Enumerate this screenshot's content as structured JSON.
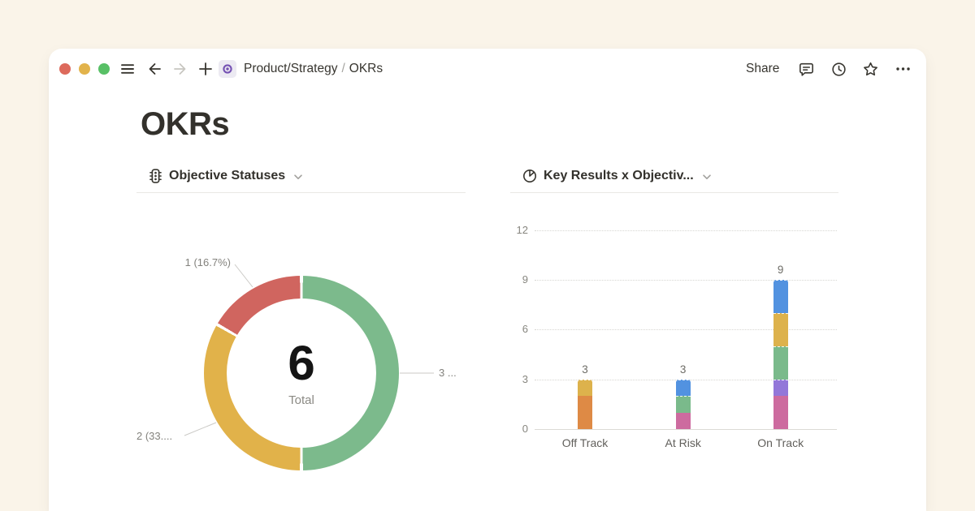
{
  "window": {
    "traffic_lights": [
      "close",
      "minimize",
      "zoom"
    ],
    "breadcrumb": {
      "parent": "Product/Strategy",
      "separator": "/",
      "current": "OKRs"
    },
    "share_label": "Share",
    "toolbar_icons": [
      "sidebar-menu-icon",
      "back-arrow-icon",
      "forward-arrow-icon",
      "plus-icon",
      "eye-page-icon",
      "comment-icon",
      "clock-icon",
      "star-icon",
      "more-icon"
    ]
  },
  "page": {
    "title": "OKRs"
  },
  "chart_data": [
    {
      "type": "pie",
      "variant": "donut",
      "title": "Objective Statuses",
      "header_icon": "traffic-light-icon",
      "total": 6,
      "total_label": "Total",
      "legend": "none",
      "slices": [
        {
          "value": 3,
          "percent": 50.0,
          "color": "#7cba8c",
          "callout": "3 ..."
        },
        {
          "value": 2,
          "percent": 33.3,
          "color": "#e1b24a",
          "callout": "2 (33...."
        },
        {
          "value": 1,
          "percent": 16.7,
          "color": "#d0655f",
          "callout": "1 (16.7%)"
        }
      ]
    },
    {
      "type": "bar",
      "variant": "stacked",
      "title": "Key Results x Objectiv...",
      "header_icon": "pie-chart-icon",
      "categories": [
        "Off Track",
        "At Risk",
        "On Track"
      ],
      "yticks": [
        0,
        3,
        6,
        9,
        12
      ],
      "ylim": [
        0,
        12
      ],
      "grid": "dotted-horizontal",
      "legend": "none",
      "bars": [
        {
          "category": "Off Track",
          "total": 3,
          "segments": [
            {
              "color": "#de8a45",
              "value": 2
            },
            {
              "color": "#ddb24c",
              "value": 1
            }
          ]
        },
        {
          "category": "At Risk",
          "total": 3,
          "segments": [
            {
              "color": "#cd6b9f",
              "value": 1
            },
            {
              "color": "#7aba8b",
              "value": 1
            },
            {
              "color": "#5292e0",
              "value": 1
            }
          ]
        },
        {
          "category": "On Track",
          "total": 9,
          "segments": [
            {
              "color": "#cd6b9f",
              "value": 2
            },
            {
              "color": "#9377d9",
              "value": 1
            },
            {
              "color": "#7aba8b",
              "value": 2
            },
            {
              "color": "#ddb24c",
              "value": 2
            },
            {
              "color": "#5292e0",
              "value": 2
            }
          ]
        }
      ]
    }
  ],
  "colors": {
    "page_background": "#faf4e9",
    "card_background": "#ffffff",
    "text_primary": "#37352f",
    "text_muted": "#85847f",
    "traffic_red": "#dd6a5c",
    "traffic_yellow": "#e2b34b",
    "traffic_green": "#58c066",
    "badge_purple": "#7552b3",
    "leader_line": "#cbcac6"
  }
}
